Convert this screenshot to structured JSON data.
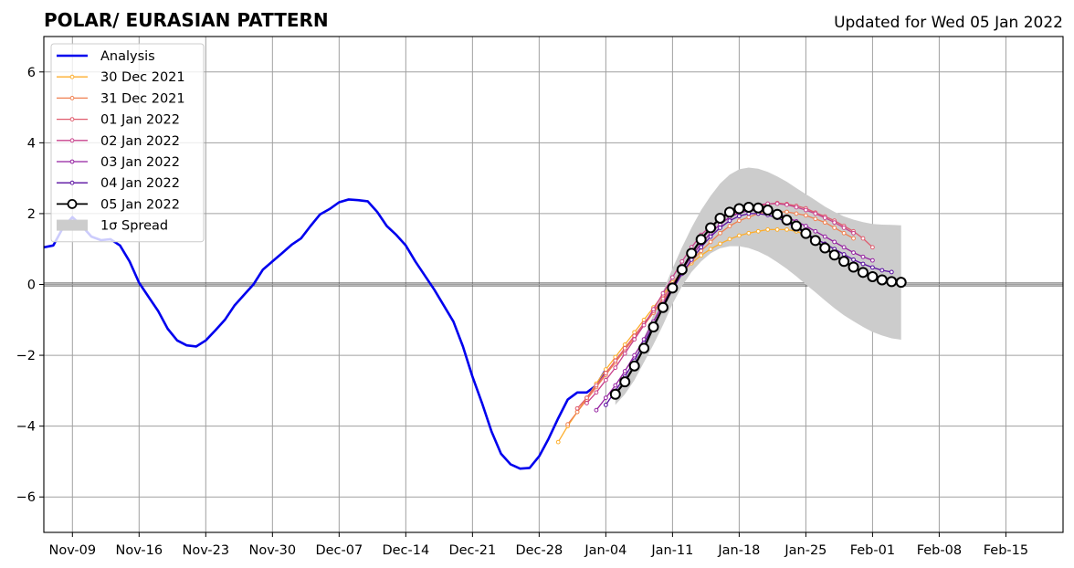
{
  "chart_data": {
    "type": "line",
    "title": "POLAR/ EURASIAN  PATTERN",
    "subtitle": "Updated for Wed 05 Jan 2022",
    "xlabel": "",
    "ylabel": "",
    "ylim": [
      -7,
      7
    ],
    "xlim": [
      "2021-11-06",
      "2022-02-21"
    ],
    "yticks": [
      -6,
      -4,
      -2,
      0,
      2,
      4,
      6
    ],
    "xticks": [
      "2021-11-09",
      "2021-11-16",
      "2021-11-23",
      "2021-11-30",
      "2021-12-07",
      "2021-12-14",
      "2021-12-21",
      "2021-12-28",
      "2022-01-04",
      "2022-01-11",
      "2022-01-18",
      "2022-01-25",
      "2022-02-01",
      "2022-02-08",
      "2022-02-15"
    ],
    "xtick_labels": [
      "Nov-09",
      "Nov-16",
      "Nov-23",
      "Nov-30",
      "Dec-07",
      "Dec-14",
      "Dec-21",
      "Dec-28",
      "Jan-04",
      "Jan-11",
      "Jan-18",
      "Jan-25",
      "Feb-01",
      "Feb-08",
      "Feb-15"
    ],
    "grid": true,
    "zero_line": true,
    "legend_position": "top-left",
    "series": [
      {
        "name": "Analysis",
        "style": "analysis",
        "color": "#0000ee",
        "start": "2021-11-06",
        "values": [
          1.05,
          1.1,
          1.6,
          1.9,
          1.65,
          1.35,
          1.25,
          1.28,
          1.1,
          0.65,
          0.05,
          -0.35,
          -0.75,
          -1.25,
          -1.58,
          -1.72,
          -1.75,
          -1.58,
          -1.3,
          -1.0,
          -0.6,
          -0.3,
          0.0,
          0.42,
          0.65,
          0.88,
          1.12,
          1.3,
          1.65,
          1.98,
          2.13,
          2.32,
          2.4,
          2.38,
          2.35,
          2.05,
          1.65,
          1.4,
          1.1,
          0.65,
          0.25,
          -0.15,
          -0.6,
          -1.05,
          -1.75,
          -2.6,
          -3.35,
          -4.15,
          -4.78,
          -5.08,
          -5.2,
          -5.18,
          -4.85,
          -4.35,
          -3.78,
          -3.25,
          -3.05,
          -3.05,
          -2.85,
          -2.4
        ]
      },
      {
        "name": "30 Dec 2021",
        "style": "forecast",
        "color": "#fdae2c",
        "start": "2021-12-30",
        "values": [
          -4.45,
          -4.0,
          -3.6,
          -3.2,
          -2.8,
          -2.4,
          -2.05,
          -1.7,
          -1.35,
          -1.0,
          -0.65,
          -0.3,
          0.05,
          0.35,
          0.6,
          0.82,
          1.0,
          1.15,
          1.28,
          1.38,
          1.45,
          1.5,
          1.55,
          1.55,
          1.55,
          1.5,
          1.4
        ]
      },
      {
        "name": "31 Dec 2021",
        "style": "forecast",
        "color": "#f08050",
        "start": "2021-12-31",
        "values": [
          -3.95,
          -3.6,
          -3.25,
          -2.9,
          -2.55,
          -2.2,
          -1.85,
          -1.5,
          -1.15,
          -0.8,
          -0.45,
          -0.1,
          0.3,
          0.65,
          0.95,
          1.2,
          1.45,
          1.65,
          1.8,
          1.9,
          2.0,
          2.05,
          2.05,
          2.05,
          2.0,
          1.95,
          1.85,
          1.75,
          1.6,
          1.45,
          1.3
        ]
      },
      {
        "name": "01 Jan 2022",
        "style": "forecast",
        "color": "#e05c6e",
        "start": "2022-01-01",
        "values": [
          -3.5,
          -3.2,
          -2.85,
          -2.5,
          -2.15,
          -1.8,
          -1.45,
          -1.1,
          -0.75,
          -0.4,
          0.0,
          0.4,
          0.8,
          1.15,
          1.45,
          1.7,
          1.9,
          2.05,
          2.15,
          2.22,
          2.27,
          2.3,
          2.27,
          2.22,
          2.15,
          2.03,
          1.92,
          1.8,
          1.65,
          1.5,
          1.3,
          1.05
        ]
      },
      {
        "name": "02 Jan 2022",
        "style": "forecast",
        "color": "#c8428c",
        "start": "2022-01-02",
        "values": [
          -3.35,
          -3.05,
          -2.7,
          -2.35,
          -1.95,
          -1.55,
          -1.15,
          -0.7,
          -0.25,
          0.2,
          0.65,
          1.05,
          1.4,
          1.65,
          1.85,
          2.0,
          2.1,
          2.2,
          2.25,
          2.28,
          2.28,
          2.25,
          2.18,
          2.1,
          2.0,
          1.88,
          1.75,
          1.6,
          1.45
        ]
      },
      {
        "name": "03 Jan 2022",
        "style": "forecast",
        "color": "#9420a0",
        "start": "2022-01-03",
        "values": [
          -3.55,
          -3.2,
          -2.85,
          -2.45,
          -2.0,
          -1.55,
          -1.05,
          -0.55,
          -0.05,
          0.4,
          0.8,
          1.15,
          1.45,
          1.7,
          1.9,
          2.02,
          2.08,
          2.1,
          2.08,
          2.0,
          1.9,
          1.78,
          1.65,
          1.5,
          1.35,
          1.2,
          1.05,
          0.9,
          0.78,
          0.68
        ]
      },
      {
        "name": "04 Jan 2022",
        "style": "forecast",
        "color": "#5a0fa0",
        "start": "2022-01-04",
        "values": [
          -3.4,
          -3.0,
          -2.6,
          -2.15,
          -1.65,
          -1.15,
          -0.65,
          -0.15,
          0.3,
          0.7,
          1.05,
          1.35,
          1.6,
          1.8,
          1.93,
          2.0,
          2.0,
          1.96,
          1.88,
          1.75,
          1.6,
          1.45,
          1.3,
          1.15,
          1.0,
          0.85,
          0.7,
          0.58,
          0.48,
          0.4,
          0.35
        ]
      },
      {
        "name": "05 Jan 2022",
        "style": "current",
        "color": "#000000",
        "start": "2022-01-05",
        "values": [
          -3.1,
          -2.75,
          -2.3,
          -1.8,
          -1.2,
          -0.65,
          -0.1,
          0.42,
          0.88,
          1.27,
          1.6,
          1.87,
          2.04,
          2.14,
          2.18,
          2.16,
          2.1,
          1.98,
          1.82,
          1.65,
          1.44,
          1.24,
          1.03,
          0.83,
          0.65,
          0.49,
          0.34,
          0.22,
          0.13,
          0.08,
          0.06
        ]
      },
      {
        "name": "1σ Spread",
        "style": "spread",
        "color": "#cccccc",
        "start": "2022-01-05",
        "upper": [
          -3.0,
          -2.6,
          -2.1,
          -1.5,
          -0.85,
          -0.2,
          0.45,
          1.05,
          1.6,
          2.1,
          2.5,
          2.85,
          3.1,
          3.25,
          3.3,
          3.27,
          3.18,
          3.05,
          2.9,
          2.72,
          2.55,
          2.38,
          2.2,
          2.05,
          1.92,
          1.83,
          1.76,
          1.71,
          1.69,
          1.68,
          1.67
        ],
        "lower": [
          -3.4,
          -3.1,
          -2.7,
          -2.2,
          -1.7,
          -1.15,
          -0.55,
          -0.05,
          0.35,
          0.65,
          0.88,
          1.02,
          1.08,
          1.08,
          1.03,
          0.93,
          0.8,
          0.63,
          0.44,
          0.23,
          0.0,
          -0.22,
          -0.45,
          -0.67,
          -0.87,
          -1.04,
          -1.2,
          -1.34,
          -1.44,
          -1.52,
          -1.56
        ]
      }
    ]
  }
}
